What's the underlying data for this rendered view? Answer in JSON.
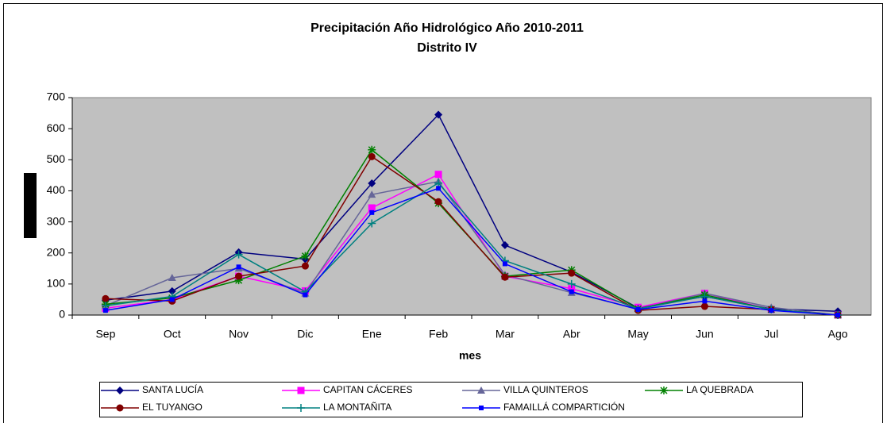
{
  "chart_data": {
    "type": "line",
    "title": "Precipitación Año Hidrológico Año 2010-2011",
    "subtitle": "Distrito IV",
    "x_label": "mes",
    "categories": [
      "Sep",
      "Oct",
      "Nov",
      "Dic",
      "Ene",
      "Feb",
      "Mar",
      "Abr",
      "May",
      "Jun",
      "Jul",
      "Ago"
    ],
    "ylim": [
      0,
      700
    ],
    "yticks": [
      0,
      100,
      200,
      300,
      400,
      500,
      600,
      700
    ],
    "grid": false,
    "plot_background": "#c0c0c0",
    "legend": "bottom",
    "series": [
      {
        "name": "SANTA LUCÍA",
        "color": "#000080",
        "marker": "diamond",
        "values": [
          48,
          77,
          202,
          180,
          424,
          645,
          225,
          138,
          23,
          60,
          20,
          12
        ]
      },
      {
        "name": "CAPITAN CÁCERES",
        "color": "#ff00ff",
        "marker": "square",
        "values": [
          22,
          50,
          125,
          78,
          345,
          453,
          125,
          85,
          25,
          70,
          18,
          0
        ]
      },
      {
        "name": "VILLA QUINTEROS",
        "color": "#666699",
        "marker": "triangle",
        "values": [
          30,
          120,
          150,
          70,
          388,
          430,
          130,
          72,
          20,
          70,
          25,
          0
        ]
      },
      {
        "name": "LA QUEBRADA",
        "color": "#008000",
        "marker": "star",
        "values": [
          35,
          55,
          112,
          190,
          532,
          360,
          125,
          145,
          20,
          65,
          18,
          0
        ]
      },
      {
        "name": "EL TUYANGO",
        "color": "#800000",
        "marker": "circle",
        "values": [
          53,
          45,
          125,
          158,
          510,
          365,
          122,
          135,
          15,
          28,
          18,
          0
        ]
      },
      {
        "name": "LA MONTAÑITA",
        "color": "#008080",
        "marker": "plus",
        "values": [
          30,
          60,
          195,
          75,
          295,
          425,
          175,
          100,
          20,
          60,
          18,
          0
        ]
      },
      {
        "name": "FAMAILLÁ COMPARTICIÓN",
        "color": "#0000ff",
        "marker": "small-square",
        "values": [
          15,
          50,
          155,
          65,
          330,
          408,
          165,
          75,
          18,
          45,
          15,
          0
        ]
      }
    ]
  }
}
